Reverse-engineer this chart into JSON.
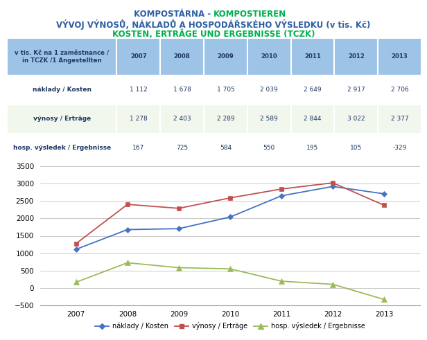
{
  "title1_part1": "KOMPOSTÁRNA",
  "title1_sep": " - ",
  "title1_part2": "KOMPOSTIEREN",
  "title2": "VÝVOJ VÝNOSŮ, NÁKLADŮ A HOSPODÁŘSKÉHO VÝSLEDKU (v tis. Kč)",
  "title3": "KOSTEN, ERTRÄGE UND ERGEBNISSE (TCZK)",
  "title1_color1": "#2E5FA3",
  "title1_color2": "#00B050",
  "title2_color": "#2E5FA3",
  "title3_color": "#00B050",
  "years": [
    2007,
    2008,
    2009,
    2010,
    2011,
    2012,
    2013
  ],
  "naklady": [
    1112,
    1678,
    1705,
    2039,
    2649,
    2917,
    2706
  ],
  "vynosy": [
    1278,
    2403,
    2289,
    2589,
    2844,
    3022,
    2377
  ],
  "hosp": [
    167,
    725,
    584,
    550,
    195,
    105,
    -329
  ],
  "row1_label": "náklady / Kosten",
  "row2_label": "výnosy / Erträge",
  "row3_label": "hosp. výsledek / Ergebnisse",
  "naklady_str": [
    "1 112",
    "1 678",
    "1 705",
    "2 039",
    "2 649",
    "2 917",
    "2 706"
  ],
  "vynosy_str": [
    "1 278",
    "2 403",
    "2 289",
    "2 589",
    "2 844",
    "3 022",
    "2 377"
  ],
  "hosp_str": [
    "167",
    "725",
    "584",
    "550",
    "195",
    "105",
    "-329"
  ],
  "table_header_bg": "#9DC3E6",
  "table_row_odd_bg": "#F2F7EE",
  "table_row_even_bg": "#FFFFFF",
  "naklady_line_color": "#4472C4",
  "vynosy_line_color": "#C0504D",
  "hosp_line_color": "#9BBB59",
  "ylim_min": -500,
  "ylim_max": 3500,
  "yticks": [
    -500,
    0,
    500,
    1000,
    1500,
    2000,
    2500,
    3000,
    3500
  ],
  "legend_naklady": "náklady / Kosten",
  "legend_vynosy": "výnosy / Erträge",
  "legend_hosp": "hosp. výsledek / Ergebnisse",
  "fig_width": 6.16,
  "fig_height": 4.91,
  "dpi": 100
}
